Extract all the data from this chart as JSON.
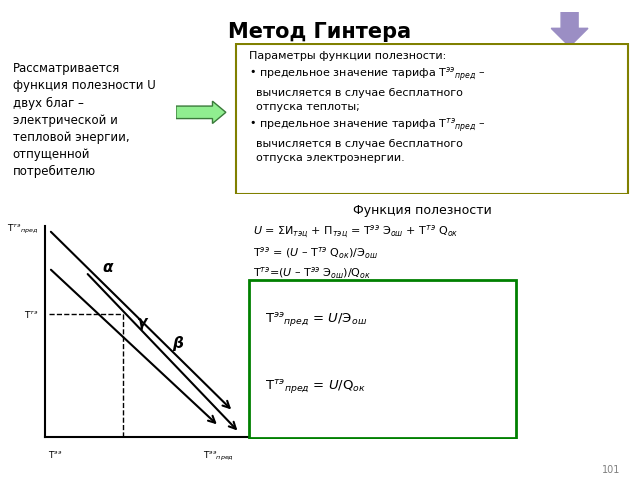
{
  "title": "Метод Гинтера",
  "title_fontsize": 15,
  "title_fontweight": "bold",
  "bg_color": "#ffffff",
  "left_text": "Рассматривается\nфункция полезности U\nдвух благ –\nэлектрической и\nтепловой энергии,\nотпущенной\nпотребителю",
  "params_box_border": "#808000",
  "result_box_border": "#008000",
  "page_num": "101"
}
